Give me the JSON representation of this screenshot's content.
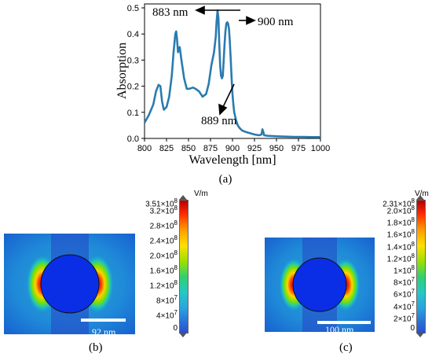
{
  "chart_data": {
    "type": "line",
    "xlabel": "Wavelength [nm]",
    "ylabel": "Absorption",
    "xlim": [
      800,
      1000
    ],
    "ylim": [
      0.0,
      0.5
    ],
    "xticks": [
      "800",
      "825",
      "850",
      "875",
      "900",
      "925",
      "950",
      "975",
      "1000"
    ],
    "yticks": [
      "0.0",
      "0.1",
      "0.2",
      "0.3",
      "0.4",
      "0.5"
    ],
    "grid": false,
    "series": [
      {
        "color": "#2a7bb0",
        "x": [
          800,
          805,
          810,
          813,
          816,
          818,
          820,
          822,
          825,
          828,
          831,
          833,
          835,
          836,
          837,
          838,
          839,
          840,
          842,
          845,
          848,
          851,
          855,
          858,
          862,
          866,
          870,
          873,
          876,
          879,
          881,
          882,
          883,
          884,
          885,
          886,
          887,
          888,
          889,
          890,
          891,
          892,
          893,
          894,
          895,
          896,
          897,
          898,
          899,
          900,
          901,
          902,
          904,
          906,
          908,
          911,
          915,
          920,
          925,
          930,
          933,
          934,
          935,
          936,
          940,
          950,
          960,
          970,
          980,
          990,
          1000
        ],
        "y": [
          0.06,
          0.09,
          0.13,
          0.18,
          0.205,
          0.2,
          0.14,
          0.11,
          0.12,
          0.16,
          0.24,
          0.33,
          0.4,
          0.41,
          0.38,
          0.33,
          0.34,
          0.35,
          0.3,
          0.23,
          0.19,
          0.19,
          0.195,
          0.19,
          0.18,
          0.16,
          0.17,
          0.21,
          0.28,
          0.33,
          0.39,
          0.45,
          0.49,
          0.46,
          0.36,
          0.28,
          0.24,
          0.23,
          0.24,
          0.3,
          0.36,
          0.41,
          0.44,
          0.445,
          0.44,
          0.42,
          0.37,
          0.3,
          0.23,
          0.17,
          0.13,
          0.1,
          0.07,
          0.05,
          0.04,
          0.03,
          0.025,
          0.02,
          0.015,
          0.012,
          0.015,
          0.035,
          0.025,
          0.012,
          0.01,
          0.008,
          0.007,
          0.006,
          0.006,
          0.005,
          0.005
        ]
      }
    ],
    "annotations": [
      {
        "text": "883 nm"
      },
      {
        "text": "900 nm"
      },
      {
        "text": "889 nm"
      }
    ],
    "caption": "(a)"
  },
  "field_maps": [
    {
      "caption": "(b)",
      "unit": "V/m",
      "max_label": "3.51×10",
      "max_exp": "8",
      "ticks": [
        {
          "m": "3.2×10",
          "e": "8"
        },
        {
          "m": "2.8×10",
          "e": "8"
        },
        {
          "m": "2.4×10",
          "e": "8"
        },
        {
          "m": "2.0×10",
          "e": "8"
        },
        {
          "m": "1.6×10",
          "e": "8"
        },
        {
          "m": "1.2×10",
          "e": "8"
        },
        {
          "m": "8×10",
          "e": "7"
        },
        {
          "m": "4×10",
          "e": "7"
        },
        {
          "m": "0",
          "e": ""
        }
      ],
      "scale_bar": "92 nm"
    },
    {
      "caption": "(c)",
      "unit": "V/m",
      "max_label": "2.31×10",
      "max_exp": "8",
      "ticks": [
        {
          "m": "2.0×10",
          "e": "8"
        },
        {
          "m": "1.8×10",
          "e": "8"
        },
        {
          "m": "1.6×10",
          "e": "8"
        },
        {
          "m": "1.4×10",
          "e": "8"
        },
        {
          "m": "1.2×10",
          "e": "8"
        },
        {
          "m": "1×10",
          "e": "8"
        },
        {
          "m": "8×10",
          "e": "7"
        },
        {
          "m": "6×10",
          "e": "7"
        },
        {
          "m": "4×10",
          "e": "7"
        },
        {
          "m": "2×10",
          "e": "7"
        },
        {
          "m": "0",
          "e": ""
        }
      ],
      "scale_bar": "100 nm"
    }
  ]
}
